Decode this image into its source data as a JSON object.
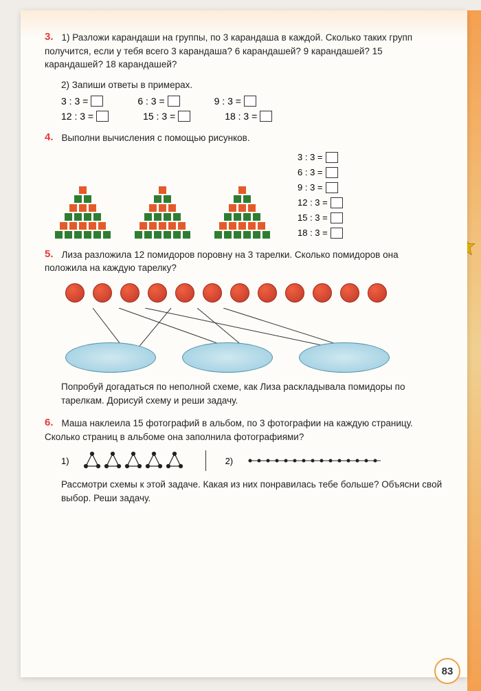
{
  "page_number": "83",
  "task3": {
    "num": "3.",
    "part1": "1) Разложи карандаши на группы, по 3 карандаша в каждой. Сколько таких групп получится, если у тебя всего 3 каран­даша? 6 карандашей? 9 карандашей? 15 карандашей? 18 карандашей?",
    "part2": "2) Запиши ответы в примерах.",
    "eqs": [
      [
        "3 : 3 =",
        "6 : 3 =",
        "9 : 3 ="
      ],
      [
        "12 : 3 =",
        "15 : 3 =",
        "18 : 3 ="
      ]
    ]
  },
  "task4": {
    "num": "4.",
    "text": "Выполни вычисления с помощью рисунков.",
    "pyramids": [
      [
        [
          "o"
        ],
        [
          "g",
          "g"
        ],
        [
          "o",
          "o",
          "o"
        ],
        [
          "g",
          "g",
          "g",
          "g"
        ],
        [
          "o",
          "o",
          "o",
          "o",
          "o"
        ],
        [
          "g",
          "g",
          "g",
          "g",
          "g",
          "g"
        ]
      ],
      [
        [
          "o"
        ],
        [
          "g",
          "g"
        ],
        [
          "o",
          "o",
          "o"
        ],
        [
          "g",
          "g",
          "g",
          "g"
        ],
        [
          "o",
          "o",
          "o",
          "o",
          "o"
        ],
        [
          "g",
          "g",
          "g",
          "g",
          "g",
          "g"
        ]
      ],
      [
        [
          "o"
        ],
        [
          "g",
          "g"
        ],
        [
          "o",
          "o",
          "o"
        ],
        [
          "g",
          "g",
          "g",
          "g"
        ],
        [
          "o",
          "o",
          "o",
          "o",
          "o"
        ],
        [
          "g",
          "g",
          "g",
          "g",
          "g",
          "g"
        ]
      ]
    ],
    "eqs": [
      "3 : 3 =",
      "6 : 3 =",
      "9 : 3 =",
      "12 : 3 =",
      "15 : 3 =",
      "18 : 3 ="
    ]
  },
  "task5": {
    "num": "5.",
    "text": "Лиза разложила 12 помидоров поровну на 3 тарелки. Сколь­ко помидоров она положила на каждую тарелку?",
    "followup": "Попробуй догадаться по неполной схеме, как Лиза расклады­вала помидоры по тарелкам. Дорисуй схему и реши задачу.",
    "tomato_count": 12,
    "plate_count": 3
  },
  "task6": {
    "num": "6.",
    "text": "Маша наклеила 15 фотографий в альбом, по 3 фотографии на каждую страницу. Сколько страниц в альбоме она запол­нила фотографиями?",
    "followup": "Рассмотри схемы к этой задаче. Какая из них понравилась тебе больше? Объясни свой выбор. Реши задачу.",
    "opt1": "1)",
    "opt2": "2)"
  },
  "colors": {
    "task_num": "#e53935",
    "orange_sq": "#e55a2b",
    "green_sq": "#2e7d32",
    "tomato": "#c0392b",
    "plate": "#9acce0"
  }
}
